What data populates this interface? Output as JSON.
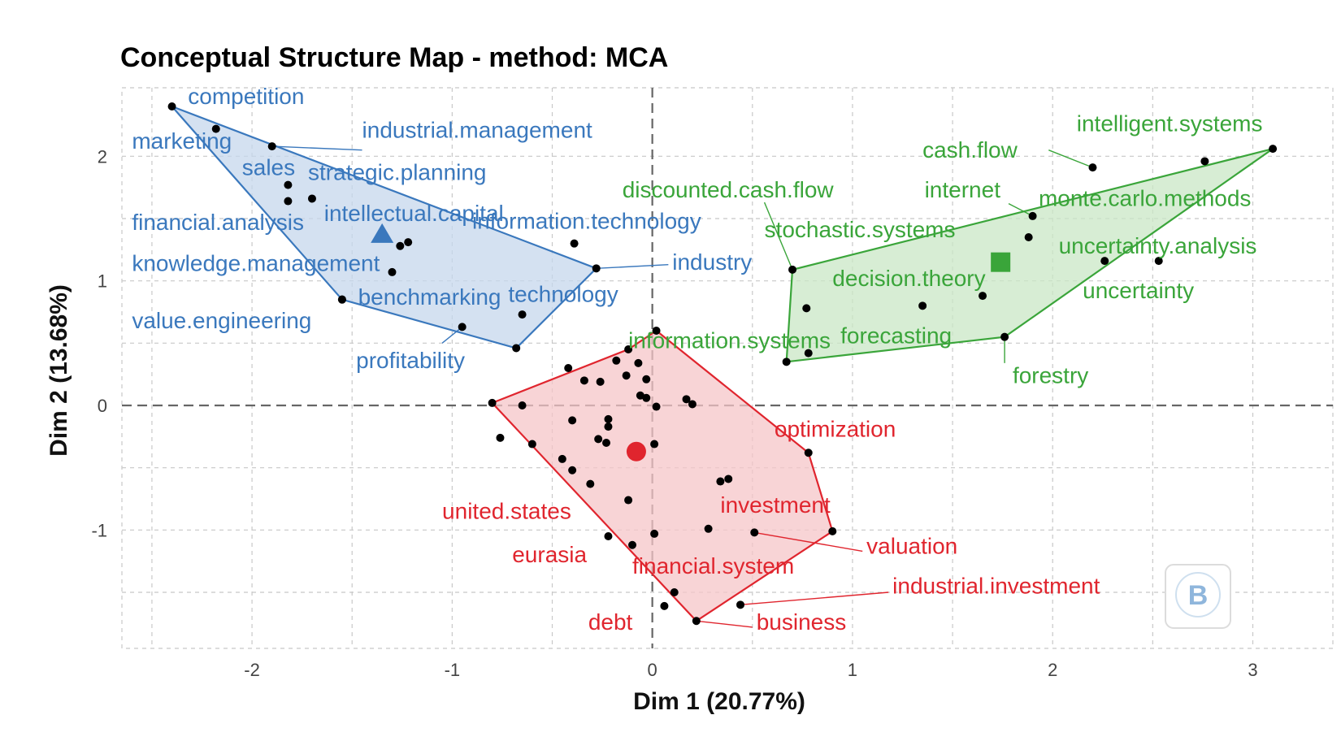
{
  "chart_data": {
    "type": "scatter",
    "title": "Conceptual Structure Map - method: MCA",
    "xlabel": "Dim 1 (20.77%)",
    "ylabel": "Dim 2 (13.68%)",
    "xlim": [
      -2.65,
      3.4
    ],
    "ylim": [
      -1.95,
      2.55
    ],
    "x_ticks": [
      -2,
      -1,
      0,
      1,
      2,
      3
    ],
    "y_ticks": [
      -1,
      0,
      1,
      2
    ],
    "x_tick_labels": [
      "-2",
      "-1",
      "0",
      "1",
      "2",
      "3"
    ],
    "y_tick_labels": [
      "-1",
      "0",
      "1",
      "2"
    ],
    "grid": true,
    "clusters": [
      {
        "name": "cluster-1",
        "color": "#3a78bd",
        "fill": "#c5d7ec",
        "centroid_shape": "triangle",
        "centroid": [
          -1.35,
          1.37
        ],
        "hull": [
          [
            -2.4,
            2.4
          ],
          [
            -0.28,
            1.1
          ],
          [
            -0.68,
            0.46
          ],
          [
            -1.55,
            0.85
          ]
        ],
        "points": [
          {
            "label": "competition",
            "x": -2.4,
            "y": 2.4
          },
          {
            "label": "marketing",
            "x": -2.18,
            "y": 2.22
          },
          {
            "label": "industrial.management",
            "x": -1.9,
            "y": 2.08
          },
          {
            "label": "sales",
            "x": -1.82,
            "y": 1.77
          },
          {
            "label": "strategic.planning",
            "x": -1.7,
            "y": 1.66
          },
          {
            "label": "financial.analysis",
            "x": -1.82,
            "y": 1.64
          },
          {
            "label": "intellectual.capital",
            "x": -1.26,
            "y": 1.28
          },
          {
            "label": "knowledge.management",
            "x": -1.3,
            "y": 1.07
          },
          {
            "label": "information.technology",
            "x": -0.39,
            "y": 1.3
          },
          {
            "label": "industry",
            "x": -0.28,
            "y": 1.1
          },
          {
            "label": "benchmarking",
            "x": -1.55,
            "y": 0.85
          },
          {
            "label": "value.engineering",
            "x": -1.55,
            "y": 0.85
          },
          {
            "label": "technology",
            "x": -0.65,
            "y": 0.73
          },
          {
            "label": "profitability",
            "x": -0.95,
            "y": 0.63
          },
          {
            "label": "",
            "x": -1.22,
            "y": 1.31
          },
          {
            "label": "",
            "x": -0.68,
            "y": 0.46
          }
        ],
        "labels": [
          {
            "text": "competition",
            "x": -2.32,
            "y": 2.42
          },
          {
            "text": "industrial.management",
            "x": -1.45,
            "y": 2.15
          },
          {
            "text": "marketing",
            "x": -2.6,
            "y": 2.06
          },
          {
            "text": "sales",
            "x": -2.05,
            "y": 1.85
          },
          {
            "text": "strategic.planning",
            "x": -1.72,
            "y": 1.81
          },
          {
            "text": "financial.analysis",
            "x": -2.6,
            "y": 1.41
          },
          {
            "text": "intellectual.capital",
            "x": -1.64,
            "y": 1.48
          },
          {
            "text": "information.technology",
            "x": -0.9,
            "y": 1.42
          },
          {
            "text": "industry",
            "x": 0.1,
            "y": 1.09
          },
          {
            "text": "knowledge.management",
            "x": -2.6,
            "y": 1.08
          },
          {
            "text": "benchmarking",
            "x": -1.47,
            "y": 0.81
          },
          {
            "text": "technology",
            "x": -0.72,
            "y": 0.83
          },
          {
            "text": "value.engineering",
            "x": -2.6,
            "y": 0.62
          },
          {
            "text": "profitability",
            "x": -1.48,
            "y": 0.3
          }
        ]
      },
      {
        "name": "cluster-2",
        "color": "#3aa53a",
        "fill": "#c9e7c6",
        "centroid_shape": "square",
        "centroid": [
          1.74,
          1.15
        ],
        "hull": [
          [
            0.67,
            0.35
          ],
          [
            0.7,
            1.09
          ],
          [
            3.1,
            2.06
          ],
          [
            1.76,
            0.55
          ]
        ],
        "points": [
          {
            "label": "intelligent.systems",
            "x": 3.1,
            "y": 2.06
          },
          {
            "label": "cash.flow",
            "x": 2.2,
            "y": 1.91
          },
          {
            "label": "monte.carlo.methods",
            "x": 2.76,
            "y": 1.96
          },
          {
            "label": "internet",
            "x": 1.9,
            "y": 1.52
          },
          {
            "label": "stochastic.systems",
            "x": 1.88,
            "y": 1.35
          },
          {
            "label": "uncertainty.analysis",
            "x": 2.26,
            "y": 1.16
          },
          {
            "label": "uncertainty",
            "x": 2.53,
            "y": 1.16
          },
          {
            "label": "discounted.cash.flow",
            "x": 0.7,
            "y": 1.09
          },
          {
            "label": "decision.theory",
            "x": 1.65,
            "y": 0.88
          },
          {
            "label": "forecasting",
            "x": 1.35,
            "y": 0.8
          },
          {
            "label": "forestry",
            "x": 1.76,
            "y": 0.55
          },
          {
            "label": "information.systems",
            "x": 0.78,
            "y": 0.42
          },
          {
            "label": "",
            "x": 0.77,
            "y": 0.78
          },
          {
            "label": "",
            "x": 0.67,
            "y": 0.35
          }
        ],
        "labels": [
          {
            "text": "intelligent.systems",
            "x": 2.12,
            "y": 2.2
          },
          {
            "text": "cash.flow",
            "x": 1.35,
            "y": 1.99
          },
          {
            "text": "discounted.cash.flow",
            "x": -0.15,
            "y": 1.67
          },
          {
            "text": "internet",
            "x": 1.36,
            "y": 1.67
          },
          {
            "text": "monte.carlo.methods",
            "x": 1.93,
            "y": 1.6
          },
          {
            "text": "stochastic.systems",
            "x": 0.56,
            "y": 1.35
          },
          {
            "text": "uncertainty.analysis",
            "x": 2.03,
            "y": 1.22
          },
          {
            "text": "decision.theory",
            "x": 0.9,
            "y": 0.96
          },
          {
            "text": "uncertainty",
            "x": 2.15,
            "y": 0.86
          },
          {
            "text": "forecasting",
            "x": 0.94,
            "y": 0.5
          },
          {
            "text": "information.systems",
            "x": -0.12,
            "y": 0.46
          },
          {
            "text": "forestry",
            "x": 1.8,
            "y": 0.18
          }
        ]
      },
      {
        "name": "cluster-3",
        "color": "#e0252e",
        "fill": "#f6c5c8",
        "centroid_shape": "circle",
        "centroid": [
          -0.08,
          -0.37
        ],
        "hull": [
          [
            0.02,
            0.6
          ],
          [
            0.78,
            -0.38
          ],
          [
            0.9,
            -1.01
          ],
          [
            0.22,
            -1.73
          ],
          [
            -0.8,
            0.02
          ],
          [
            -0.12,
            0.45
          ]
        ],
        "points": [
          {
            "label": "",
            "x": 0.02,
            "y": 0.6
          },
          {
            "label": "",
            "x": -0.12,
            "y": 0.45
          },
          {
            "label": "",
            "x": -0.07,
            "y": 0.34
          },
          {
            "label": "",
            "x": -0.42,
            "y": 0.3
          },
          {
            "label": "",
            "x": -0.18,
            "y": 0.36
          },
          {
            "label": "",
            "x": -0.13,
            "y": 0.24
          },
          {
            "label": "",
            "x": -0.34,
            "y": 0.2
          },
          {
            "label": "",
            "x": -0.26,
            "y": 0.19
          },
          {
            "label": "",
            "x": -0.03,
            "y": 0.21
          },
          {
            "label": "",
            "x": -0.8,
            "y": 0.02
          },
          {
            "label": "",
            "x": -0.65,
            "y": 0.0
          },
          {
            "label": "",
            "x": -0.06,
            "y": 0.08
          },
          {
            "label": "",
            "x": -0.03,
            "y": 0.06
          },
          {
            "label": "",
            "x": 0.02,
            "y": -0.01
          },
          {
            "label": "",
            "x": 0.17,
            "y": 0.05
          },
          {
            "label": "",
            "x": 0.2,
            "y": 0.01
          },
          {
            "label": "",
            "x": -0.4,
            "y": -0.12
          },
          {
            "label": "",
            "x": -0.22,
            "y": -0.11
          },
          {
            "label": "",
            "x": -0.22,
            "y": -0.17
          },
          {
            "label": "",
            "x": -0.76,
            "y": -0.26
          },
          {
            "label": "",
            "x": -0.6,
            "y": -0.31
          },
          {
            "label": "",
            "x": -0.27,
            "y": -0.27
          },
          {
            "label": "",
            "x": -0.23,
            "y": -0.3
          },
          {
            "label": "",
            "x": 0.01,
            "y": -0.31
          },
          {
            "label": "",
            "x": -0.45,
            "y": -0.43
          },
          {
            "label": "",
            "x": -0.4,
            "y": -0.52
          },
          {
            "label": "",
            "x": -0.31,
            "y": -0.63
          },
          {
            "label": "",
            "x": 0.34,
            "y": -0.61
          },
          {
            "label": "",
            "x": 0.38,
            "y": -0.59
          },
          {
            "label": "",
            "x": -0.12,
            "y": -0.76
          },
          {
            "label": "optimization",
            "x": 0.78,
            "y": -0.38
          },
          {
            "label": "valuation",
            "x": 0.9,
            "y": -1.01
          },
          {
            "label": "investment",
            "x": 0.51,
            "y": -1.02
          },
          {
            "label": "united.states",
            "x": 0.28,
            "y": -0.99
          },
          {
            "label": "",
            "x": 0.01,
            "y": -1.03
          },
          {
            "label": "",
            "x": -0.22,
            "y": -1.05
          },
          {
            "label": "eurasia",
            "x": -0.1,
            "y": -1.12
          },
          {
            "label": "financial.system",
            "x": 0.11,
            "y": -1.5
          },
          {
            "label": "industrial.investment",
            "x": 0.44,
            "y": -1.6
          },
          {
            "label": "debt",
            "x": 0.06,
            "y": -1.61
          },
          {
            "label": "business",
            "x": 0.22,
            "y": -1.73
          }
        ],
        "labels": [
          {
            "text": "optimization",
            "x": 0.61,
            "y": -0.25
          },
          {
            "text": "investment",
            "x": 0.34,
            "y": -0.86
          },
          {
            "text": "united.states",
            "x": -1.05,
            "y": -0.91
          },
          {
            "text": "valuation",
            "x": 1.07,
            "y": -1.19
          },
          {
            "text": "eurasia",
            "x": -0.7,
            "y": -1.26
          },
          {
            "text": "financial.system",
            "x": -0.1,
            "y": -1.35
          },
          {
            "text": "industrial.investment",
            "x": 1.2,
            "y": -1.51
          },
          {
            "text": "debt",
            "x": -0.32,
            "y": -1.8
          },
          {
            "text": "business",
            "x": 0.52,
            "y": -1.8
          }
        ]
      }
    ],
    "leaders": [
      {
        "cluster": 0,
        "from": [
          -1.9,
          2.08
        ],
        "to": [
          -1.45,
          2.05
        ]
      },
      {
        "cluster": 0,
        "from": [
          -0.28,
          1.1
        ],
        "to": [
          0.08,
          1.13
        ]
      },
      {
        "cluster": 0,
        "from": [
          -0.95,
          0.63
        ],
        "to": [
          -1.05,
          0.5
        ]
      },
      {
        "cluster": 1,
        "from": [
          2.2,
          1.91
        ],
        "to": [
          1.98,
          2.05
        ]
      },
      {
        "cluster": 1,
        "from": [
          0.7,
          1.09
        ],
        "to": [
          0.56,
          1.63
        ]
      },
      {
        "cluster": 1,
        "from": [
          1.9,
          1.52
        ],
        "to": [
          1.78,
          1.62
        ]
      },
      {
        "cluster": 1,
        "from": [
          1.76,
          0.55
        ],
        "to": [
          1.76,
          0.34
        ]
      },
      {
        "cluster": 2,
        "from": [
          0.51,
          -1.02
        ],
        "to": [
          1.05,
          -1.17
        ]
      },
      {
        "cluster": 2,
        "from": [
          0.44,
          -1.6
        ],
        "to": [
          1.18,
          -1.5
        ]
      },
      {
        "cluster": 2,
        "from": [
          0.22,
          -1.73
        ],
        "to": [
          0.5,
          -1.78
        ]
      }
    ]
  },
  "watermark": {
    "icon": "bibliometrix-logo-icon"
  }
}
